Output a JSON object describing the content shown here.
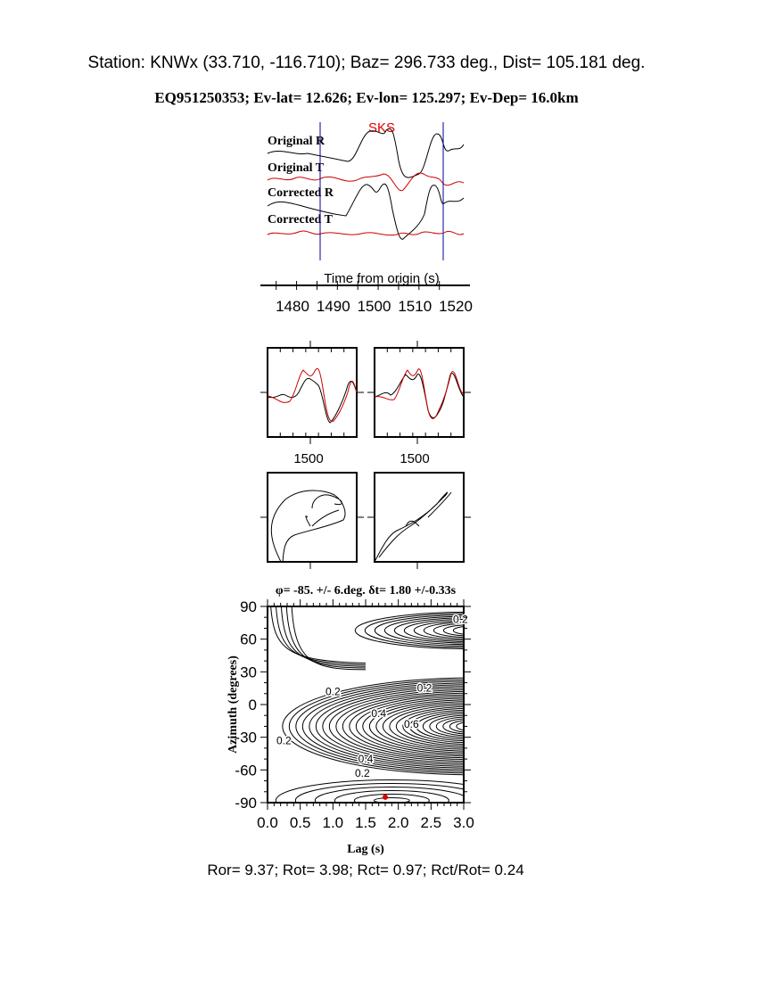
{
  "header": {
    "station_line": "Station: KNWx (33.710, -116.710); Baz=  296.733 deg., Dist=  105.181 deg.",
    "event_line": "EQ951250353; Ev-lat=  12.626; Ev-lon= 125.297; Ev-Dep= 16.0km"
  },
  "chart_data": [
    {
      "type": "line",
      "name": "seismograms",
      "phase_label": "SKS",
      "trace_labels": [
        "Original R",
        "Original T",
        "Corrected R",
        "Corrected T"
      ],
      "xlabel": "Time from origin (s)",
      "x_ticks": [
        "1480",
        "1490",
        "1500",
        "1510",
        "1520"
      ],
      "xlim": [
        1475,
        1522
      ],
      "window": [
        1487,
        1517
      ],
      "colors": {
        "radial": "#000000",
        "transverse": "#cc0000",
        "window": "#000099"
      }
    },
    {
      "type": "line",
      "name": "waveform-comparison",
      "x_tick_label": "1500",
      "panels": [
        "original",
        "corrected"
      ]
    },
    {
      "type": "line",
      "name": "particle-motion",
      "panels": [
        "original",
        "corrected"
      ]
    },
    {
      "type": "heatmap",
      "name": "energy-contour",
      "title": "φ= -85. +/- 6.deg. δt= 1.80 +/-0.33s",
      "xlabel": "Lag (s)",
      "ylabel": "Azimuth (degrees)",
      "xlim": [
        0,
        3
      ],
      "ylim": [
        -90,
        90
      ],
      "x_ticks": [
        "0.0",
        "0.5",
        "1.0",
        "1.5",
        "2.0",
        "2.5",
        "3.0"
      ],
      "y_ticks": [
        "90",
        "60",
        "30",
        "0",
        "-30",
        "-60",
        "-90"
      ],
      "contour_labels": [
        "0.2",
        "0.2",
        "0.4",
        "0.6",
        "0.2",
        "0.4",
        "0.2",
        "0.2"
      ],
      "best_fit": {
        "lag": 1.8,
        "azimuth": -85
      },
      "marker_color": "#dd0000"
    }
  ],
  "footer": {
    "ratios": "Ror= 9.37; Rot= 3.98; Rct= 0.97; Rct/Rot= 0.24"
  }
}
